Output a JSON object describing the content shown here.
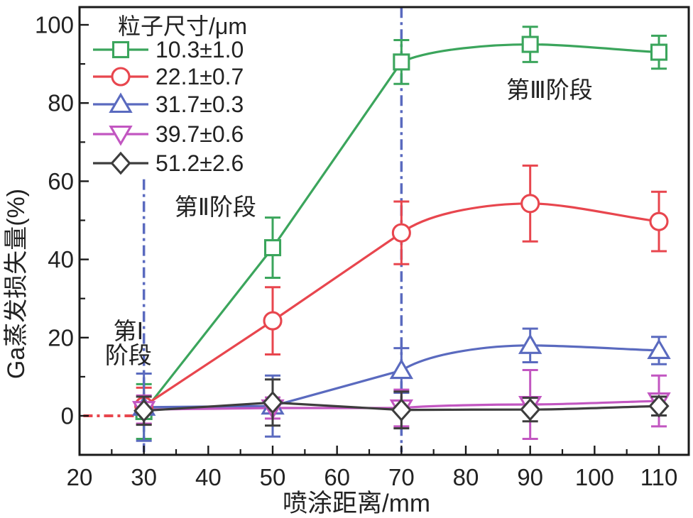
{
  "chart_data": {
    "type": "line",
    "title": "",
    "xlabel": "喷涂距离/mm",
    "ylabel": "Ga蒸发损失量(%)",
    "xlim": [
      20,
      114.6
    ],
    "ylim": [
      -10,
      104.5
    ],
    "x_ticks": [
      20,
      30,
      40,
      50,
      60,
      70,
      80,
      90,
      100,
      110
    ],
    "x_minor_ticks": [
      25,
      35,
      45,
      55,
      65,
      75,
      85,
      95,
      105
    ],
    "y_ticks": [
      0,
      20,
      40,
      60,
      80,
      100
    ],
    "y_minor_ticks": [
      10,
      30,
      50,
      70,
      90
    ],
    "grid": false,
    "legend_position": "upper-left-inside",
    "legend_title": "粒子尺寸/μm",
    "x": [
      30,
      50,
      70,
      90,
      110
    ],
    "series": [
      {
        "name": "10.3±1.0",
        "marker": "square",
        "color": "#3ba55c",
        "values": [
          1.1,
          43.0,
          90.5,
          95.0,
          93.0
        ],
        "errors": [
          7.0,
          7.7,
          5.6,
          4.5,
          4.2
        ]
      },
      {
        "name": "22.1±0.7",
        "marker": "circle",
        "color": "#e8464e",
        "values": [
          2.5,
          24.3,
          46.8,
          54.3,
          49.7
        ],
        "errors": [
          4.7,
          8.6,
          8.0,
          9.7,
          7.6
        ]
      },
      {
        "name": "31.7±0.3",
        "marker": "triangle-up",
        "color": "#5a6abf",
        "values": [
          2.2,
          2.5,
          11.6,
          18.0,
          16.7
        ],
        "errors": [
          8.6,
          7.8,
          5.7,
          4.3,
          3.5
        ]
      },
      {
        "name": "39.7±0.6",
        "marker": "triangle-down",
        "color": "#c256c1",
        "values": [
          1.6,
          2.0,
          2.0,
          2.9,
          3.8
        ],
        "errors": [
          3.6,
          2.7,
          4.7,
          8.8,
          6.5
        ]
      },
      {
        "name": "51.2±2.6",
        "marker": "diamond",
        "color": "#3d3d3d",
        "values": [
          1.3,
          3.4,
          1.5,
          1.6,
          2.5
        ],
        "errors": [
          3.6,
          5.9,
          4.7,
          3.0,
          2.4
        ]
      }
    ],
    "guide_lines": [
      {
        "orientation": "vertical",
        "x": 30,
        "y_range": [
          -9.3,
          60.5
        ],
        "color": "#5a6abf",
        "style": "dash-dot"
      },
      {
        "orientation": "vertical",
        "x": 70,
        "y_range": [
          -9.3,
          104.5
        ],
        "color": "#5a6abf",
        "style": "dash-dot"
      },
      {
        "orientation": "horizontal",
        "y": 0,
        "x_range": [
          20.6,
          30.4
        ],
        "color": "#e8464e",
        "style": "dash-dot"
      }
    ],
    "annotations": [
      {
        "id": "stage-1",
        "lines": [
          "第Ⅰ",
          "阶段"
        ],
        "x_mm": 27.6,
        "y_pct_baselines": [
          19.6,
          13.4
        ]
      },
      {
        "id": "stage-2",
        "lines": [
          "第Ⅱ阶段"
        ],
        "x_mm": 41.1,
        "y_pct_baselines": [
          51.4
        ]
      },
      {
        "id": "stage-3",
        "lines": [
          "第Ⅲ阶段"
        ],
        "x_mm": 93.0,
        "y_pct_baselines": [
          81.3
        ]
      }
    ],
    "colors": {
      "axis": "#1a1a1a",
      "text": "#222222",
      "background": "#ffffff"
    }
  }
}
